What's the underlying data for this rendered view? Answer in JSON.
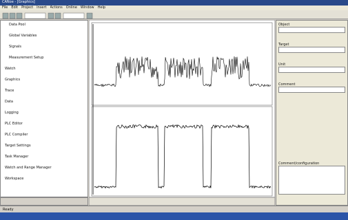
{
  "window": {
    "title": "CANoe - [Graphics]",
    "menu": [
      "File",
      "Edit",
      "Project",
      "Insert",
      "Actions",
      "Online",
      "Window",
      "Help"
    ]
  },
  "tree": [
    "Data Pool",
    "Global Variables",
    "Signals",
    "Measurement Setup",
    "Watch",
    "Graphics",
    "Trace",
    "Data",
    "Logging",
    "PLC Editor",
    "PLC Compiler",
    "Target Settings",
    "Task Manager",
    "Watch and Range Manager",
    "Workspace"
  ],
  "right_panel": {
    "labels": [
      "Object",
      "Target",
      "Unit",
      "Comment"
    ],
    "comment": "Comment/configuration"
  },
  "status": "Ready"
}
